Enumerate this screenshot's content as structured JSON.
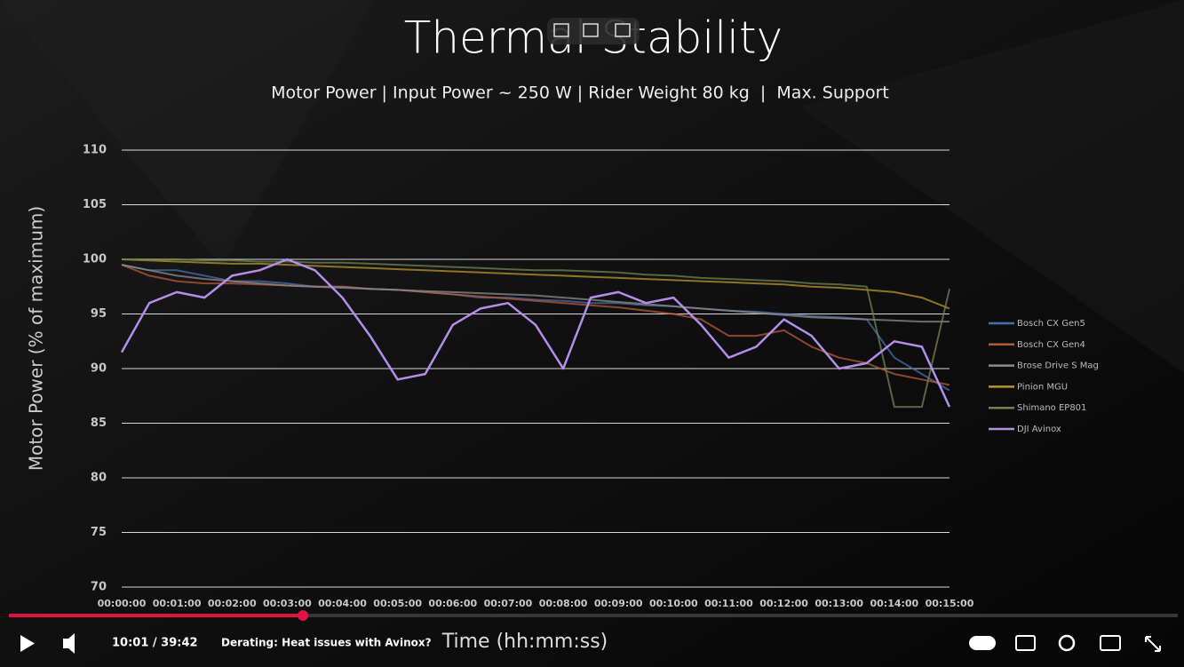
{
  "chart_data": {
    "type": "line",
    "title": "Thermal Stability",
    "subtitle": "Motor Power | Input Power ~ 250 W | Rider Weight 80 kg  |  Max. Support",
    "y_label": "Motor Power (% of maximum)",
    "x_label": "Time (hh:mm:ss)",
    "x": [
      0,
      0.5,
      1,
      1.5,
      2,
      2.5,
      3,
      3.5,
      4,
      4.5,
      5,
      5.5,
      6,
      6.5,
      7,
      7.5,
      8,
      8.5,
      9,
      9.5,
      10,
      10.5,
      11,
      11.5,
      12,
      12.5,
      13,
      13.5,
      14,
      14.5,
      15
    ],
    "xlim": [
      0,
      15
    ],
    "xticks": [
      {
        "value": 0,
        "label": "00:00:00"
      },
      {
        "value": 1,
        "label": "00:01:00"
      },
      {
        "value": 2,
        "label": "00:02:00"
      },
      {
        "value": 3,
        "label": "00:03:00"
      },
      {
        "value": 4,
        "label": "00:04:00"
      },
      {
        "value": 5,
        "label": "00:05:00"
      },
      {
        "value": 6,
        "label": "00:06:00"
      },
      {
        "value": 7,
        "label": "00:07:00"
      },
      {
        "value": 8,
        "label": "00:08:00"
      },
      {
        "value": 9,
        "label": "00:09:00"
      },
      {
        "value": 10,
        "label": "00:10:00"
      },
      {
        "value": 11,
        "label": "00:11:00"
      },
      {
        "value": 12,
        "label": "00:12:00"
      },
      {
        "value": 13,
        "label": "00:13:00"
      },
      {
        "value": 14,
        "label": "00:14:00"
      },
      {
        "value": 15,
        "label": "00:15:00"
      }
    ],
    "ylim": [
      70,
      110
    ],
    "yticks": [
      70,
      75,
      80,
      85,
      90,
      95,
      100,
      105,
      110
    ],
    "grid": true,
    "legend": "right",
    "series": [
      {
        "name": "Bosch CX Gen5",
        "color": "#4a6fb0",
        "values": [
          99.5,
          99,
          99,
          98.5,
          98,
          98,
          97.8,
          97.5,
          97.5,
          97.3,
          97.2,
          97,
          96.8,
          96.5,
          96.5,
          96.3,
          96.2,
          96,
          96,
          95.8,
          95.7,
          95.5,
          95.3,
          95.2,
          95,
          94.8,
          94.7,
          94.5,
          91,
          89.5,
          88
        ]
      },
      {
        "name": "Bosch CX Gen4",
        "color": "#b85a35",
        "values": [
          99.5,
          98.5,
          98,
          97.8,
          97.8,
          97.7,
          97.6,
          97.5,
          97.5,
          97.3,
          97.2,
          97,
          96.8,
          96.6,
          96.4,
          96.2,
          96,
          95.8,
          95.6,
          95.3,
          95,
          94.5,
          93,
          93,
          93.5,
          92,
          91,
          90.5,
          89.5,
          89,
          88.5
        ]
      },
      {
        "name": "Brose Drive S Mag",
        "color": "#8c8c8c",
        "values": [
          99.5,
          99,
          98.5,
          98.2,
          98,
          97.8,
          97.6,
          97.5,
          97.4,
          97.3,
          97.2,
          97.1,
          97,
          96.9,
          96.8,
          96.7,
          96.5,
          96.3,
          96.1,
          95.9,
          95.7,
          95.5,
          95.3,
          95.1,
          94.9,
          94.7,
          94.6,
          94.5,
          94.4,
          94.3,
          94.3
        ]
      },
      {
        "name": "Pinion MGU",
        "color": "#b8962a",
        "values": [
          100,
          99.9,
          99.8,
          99.7,
          99.6,
          99.6,
          99.5,
          99.4,
          99.3,
          99.2,
          99.1,
          99,
          98.9,
          98.8,
          98.7,
          98.6,
          98.5,
          98.4,
          98.3,
          98.2,
          98.1,
          98,
          97.9,
          97.8,
          97.7,
          97.5,
          97.4,
          97.2,
          97,
          96.5,
          95.5
        ]
      },
      {
        "name": "Shimano EP801",
        "color": "#6f8450",
        "values": [
          100,
          100,
          100,
          99.9,
          99.9,
          99.8,
          99.8,
          99.7,
          99.7,
          99.6,
          99.5,
          99.4,
          99.3,
          99.2,
          99.1,
          99,
          99,
          98.9,
          98.8,
          98.6,
          98.5,
          98.3,
          98.2,
          98.1,
          98,
          97.8,
          97.7,
          97.5,
          86.5,
          86.5,
          97.3
        ]
      },
      {
        "name": "DJI Avinox",
        "color": "#b48ee8",
        "values": [
          91.5,
          96,
          97,
          96.5,
          98.5,
          99,
          100,
          99,
          96.5,
          93,
          89,
          89.5,
          94,
          95.5,
          96,
          94,
          90,
          96.5,
          97,
          96,
          96.5,
          94,
          91,
          92,
          94.5,
          93,
          90,
          90.5,
          92.5,
          92,
          86.5
        ]
      }
    ]
  },
  "player": {
    "time": "10:01 / 39:42",
    "chapter": "Derating: Heat issues with Avinox?"
  }
}
